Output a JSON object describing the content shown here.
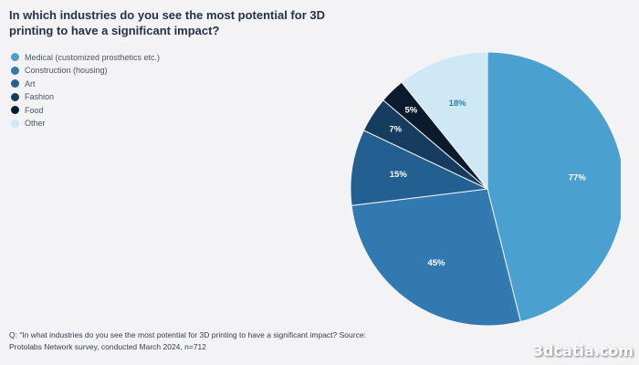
{
  "title": "In which industries do you see the most potential for 3D printing to have a significant impact?",
  "chart_data": {
    "type": "pie",
    "categories": [
      "Medical (customized prosthetics etc.)",
      "Construction (housing)",
      "Art",
      "Fashion",
      "Food",
      "Other"
    ],
    "values": [
      77,
      45,
      15,
      7,
      5,
      18
    ],
    "labels": [
      "77%",
      "45%",
      "15%",
      "7%",
      "5%",
      "18%"
    ],
    "colors": [
      "#4aa0ce",
      "#3279b2",
      "#245f91",
      "#163d60",
      "#0b1b2d",
      "#cfe8f6"
    ],
    "label_colors": [
      "#ffffff",
      "#ffffff",
      "#ffffff",
      "#ffffff",
      "#ffffff",
      "#2d7fb6"
    ],
    "legend_position": "top-left"
  },
  "footnote": "Q: \"In what industries do you see the most potential for 3D printing to have a significant impact? Source: Protolabs Network survey, conducted March 2024, n=712",
  "watermark": "3dcatia.com"
}
